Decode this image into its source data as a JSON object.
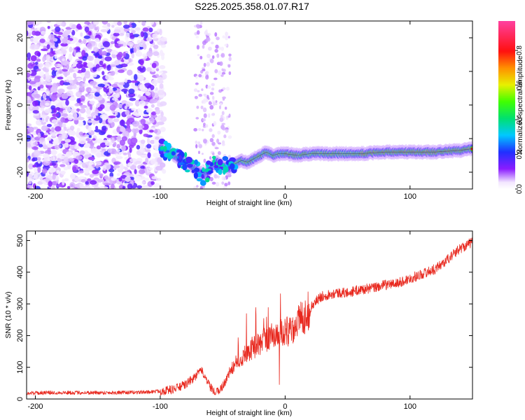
{
  "title": "S225.2025.358.01.07.R17",
  "chart_data": [
    {
      "type": "heatmap",
      "xlabel": "Height of straight line (km)",
      "ylabel": "Frequency (Hz)",
      "xlim": [
        -207,
        150
      ],
      "ylim": [
        -25,
        25
      ],
      "xticks": [
        -200,
        -100,
        0,
        100
      ],
      "yticks": [
        20,
        10,
        0,
        -10,
        -20
      ],
      "ridge": {
        "x": [
          -100,
          -95,
          -90,
          -85,
          -80,
          -75,
          -70,
          -65,
          -60,
          -55,
          -50,
          -45,
          -40,
          -35,
          -30,
          -25,
          -20,
          -15,
          -10,
          -5,
          0,
          10,
          20,
          40,
          60,
          80,
          100,
          120,
          140,
          150
        ],
        "y": [
          -13,
          -13.5,
          -14.5,
          -16,
          -17,
          -18,
          -19.5,
          -21,
          -19,
          -17,
          -18,
          -19,
          -17.5,
          -16.5,
          -17,
          -16,
          -15,
          -14,
          -15,
          -14.5,
          -14.5,
          -15,
          -14.5,
          -14.5,
          -14.5,
          -14,
          -14,
          -14,
          -13.5,
          -13
        ]
      },
      "colorbar": {
        "label": "Normalized spectral amplitude",
        "ticks": [
          "0.0",
          "0.2",
          "0.4",
          "0.6",
          "0.8"
        ],
        "range": [
          0,
          0.97
        ]
      }
    },
    {
      "type": "line",
      "xlabel": "Height of straight line (km)",
      "ylabel": "SNR (10 * v/v)",
      "xlim": [
        -207,
        150
      ],
      "ylim": [
        0,
        530
      ],
      "xticks": [
        -200,
        -100,
        0,
        100
      ],
      "yticks": [
        0,
        100,
        200,
        300,
        400,
        500
      ],
      "series": [
        {
          "name": "SNR",
          "color": "#e8281e",
          "x": [
            -207,
            -190,
            -170,
            -150,
            -130,
            -110,
            -100,
            -90,
            -80,
            -72,
            -68,
            -65,
            -62,
            -58,
            -55,
            -50,
            -45,
            -40,
            -35,
            -30,
            -25,
            -20,
            -15,
            -10,
            -5,
            0,
            5,
            10,
            15,
            20,
            25,
            30,
            40,
            50,
            60,
            70,
            80,
            90,
            100,
            110,
            120,
            130,
            140,
            150
          ],
          "y": [
            18,
            20,
            20,
            20,
            20,
            22,
            25,
            30,
            45,
            70,
            90,
            80,
            50,
            25,
            20,
            40,
            80,
            110,
            130,
            150,
            165,
            175,
            190,
            200,
            205,
            210,
            220,
            245,
            260,
            285,
            310,
            325,
            335,
            335,
            345,
            350,
            360,
            365,
            380,
            395,
            410,
            440,
            475,
            495
          ]
        }
      ]
    }
  ]
}
